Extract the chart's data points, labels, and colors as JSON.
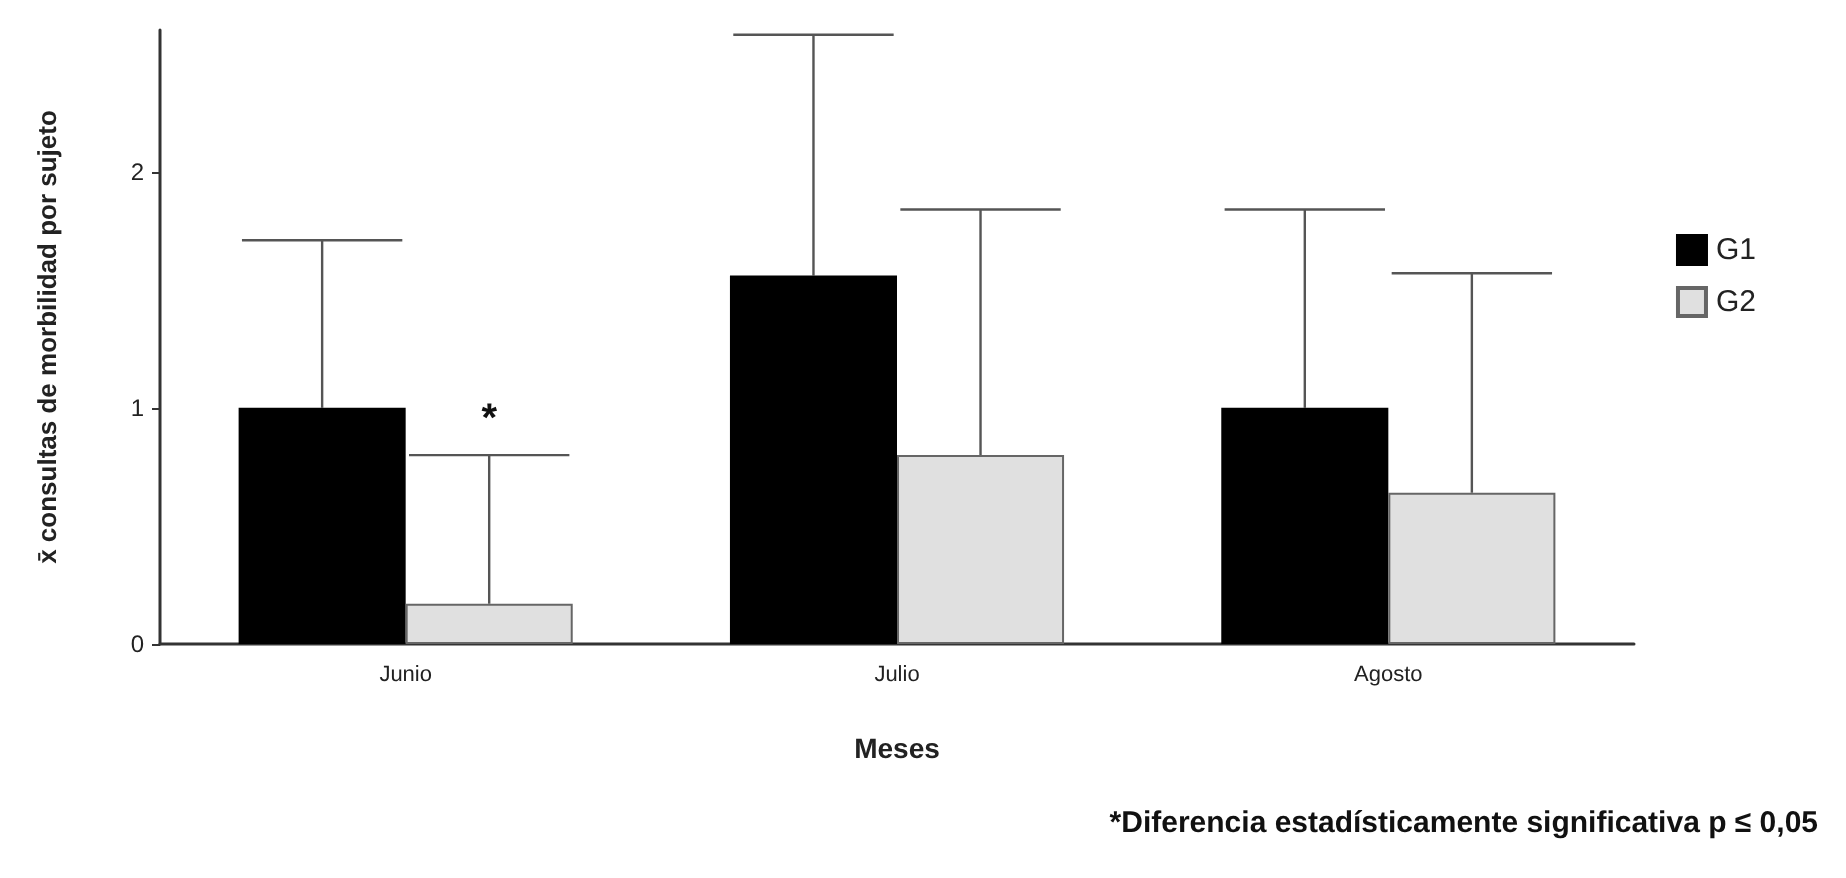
{
  "chart_data": {
    "type": "bar",
    "xlabel": "Meses",
    "ylabel": "x̄ consultas de morbilidad por sujeto",
    "categories": [
      "Junio",
      "Julio",
      "Agosto"
    ],
    "series": [
      {
        "name": "G1",
        "color": "#000000",
        "values": [
          1.0,
          1.56,
          1.0
        ],
        "errors": [
          [
            1.0,
            1.71
          ],
          [
            1.56,
            2.58
          ],
          [
            1.0,
            1.84
          ]
        ]
      },
      {
        "name": "G2",
        "color": "#e0e0e0",
        "values": [
          0.17,
          0.8,
          0.64
        ],
        "errors": [
          [
            0.17,
            0.8
          ],
          [
            0.8,
            1.84
          ],
          [
            0.64,
            1.57
          ]
        ]
      }
    ],
    "ylim": [
      0,
      2.6
    ],
    "yticks": [
      0,
      1,
      2
    ],
    "grid": false,
    "legend": "right",
    "annotations": [
      {
        "text": "*",
        "x": "Junio",
        "y": 0.8
      },
      "*Diferencia estadísticamente significativa p ≤ 0,05"
    ]
  }
}
